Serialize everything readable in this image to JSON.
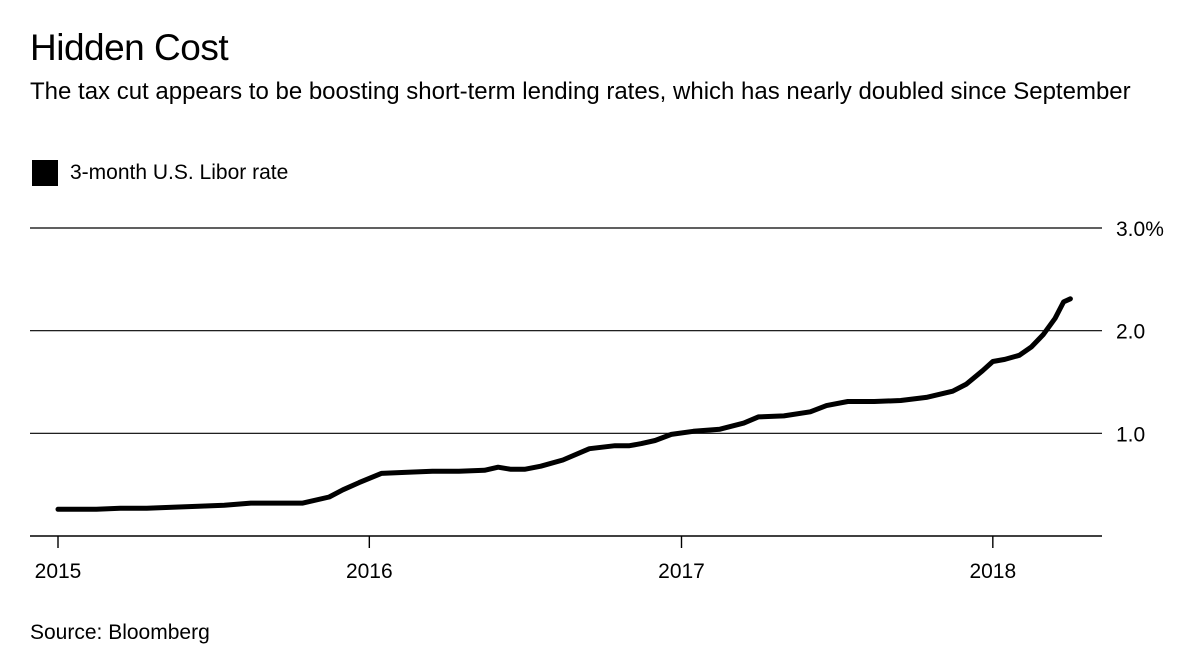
{
  "header": {
    "title": "Hidden Cost",
    "subtitle": "The tax cut appears to be boosting short-term lending rates, which has nearly doubled since September"
  },
  "legend": {
    "label": "3-month U.S. Libor rate"
  },
  "footer": {
    "source": "Source: Bloomberg"
  },
  "colors": {
    "line": "#000000",
    "grid": "#000000",
    "background": "#ffffff"
  },
  "chart_data": {
    "type": "line",
    "title": "Hidden Cost",
    "subtitle": "The tax cut appears to be boosting short-term lending rates, which has nearly doubled since September",
    "xlabel": "",
    "ylabel": "",
    "x_ticks": [
      "2015",
      "2016",
      "2017",
      "2018"
    ],
    "y_ticks": [
      "1.0",
      "2.0",
      "3.0%"
    ],
    "y_tick_values": [
      1.0,
      2.0,
      3.0
    ],
    "ylim": [
      0,
      3.0
    ],
    "xlim": [
      "2015-01-01",
      "2018-04-05"
    ],
    "grid": true,
    "y_axis_position": "right",
    "legend_position": "top-left",
    "series": [
      {
        "name": "3-month U.S. Libor rate",
        "x": [
          "2015-01-01",
          "2015-02-15",
          "2015-03-15",
          "2015-04-15",
          "2015-05-15",
          "2015-06-15",
          "2015-07-15",
          "2015-08-15",
          "2015-09-15",
          "2015-10-15",
          "2015-11-15",
          "2015-12-01",
          "2015-12-20",
          "2016-01-15",
          "2016-02-15",
          "2016-03-15",
          "2016-04-15",
          "2016-05-15",
          "2016-05-31",
          "2016-06-15",
          "2016-07-01",
          "2016-07-20",
          "2016-08-15",
          "2016-09-15",
          "2016-10-15",
          "2016-11-01",
          "2016-11-15",
          "2016-12-01",
          "2016-12-20",
          "2017-01-15",
          "2017-02-15",
          "2017-03-15",
          "2017-04-01",
          "2017-05-01",
          "2017-06-01",
          "2017-06-20",
          "2017-07-15",
          "2017-08-15",
          "2017-09-15",
          "2017-10-15",
          "2017-11-15",
          "2017-12-01",
          "2017-12-20",
          "2018-01-01",
          "2018-01-15",
          "2018-02-01",
          "2018-02-15",
          "2018-03-01",
          "2018-03-15",
          "2018-03-25",
          "2018-04-02"
        ],
        "values": [
          0.26,
          0.26,
          0.27,
          0.27,
          0.28,
          0.29,
          0.3,
          0.32,
          0.32,
          0.32,
          0.38,
          0.45,
          0.52,
          0.61,
          0.62,
          0.63,
          0.63,
          0.64,
          0.67,
          0.65,
          0.65,
          0.68,
          0.74,
          0.85,
          0.88,
          0.88,
          0.9,
          0.93,
          0.99,
          1.02,
          1.04,
          1.1,
          1.16,
          1.17,
          1.21,
          1.27,
          1.31,
          1.31,
          1.32,
          1.35,
          1.41,
          1.48,
          1.61,
          1.7,
          1.72,
          1.76,
          1.84,
          1.96,
          2.12,
          2.28,
          2.31
        ]
      }
    ]
  }
}
